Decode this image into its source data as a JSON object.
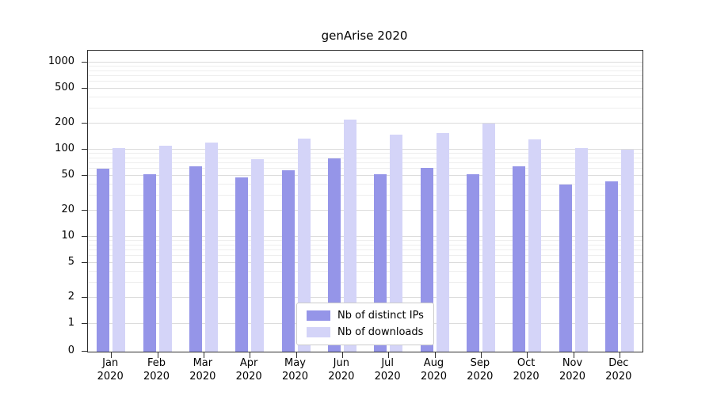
{
  "chart_data": {
    "type": "bar",
    "title": "genArise 2020",
    "categories": [
      "Jan 2020",
      "Feb 2020",
      "Mar 2020",
      "Apr 2020",
      "May 2020",
      "Jun 2020",
      "Jul 2020",
      "Aug 2020",
      "Sep 2020",
      "Oct 2020",
      "Nov 2020",
      "Dec 2020"
    ],
    "month_labels": [
      "Jan",
      "Feb",
      "Mar",
      "Apr",
      "May",
      "Jun",
      "Jul",
      "Aug",
      "Sep",
      "Oct",
      "Nov",
      "Dec"
    ],
    "year_label": "2020",
    "series": [
      {
        "name": "Nb of distinct IPs",
        "color": "#9595e8",
        "values": [
          60,
          52,
          65,
          48,
          58,
          80,
          52,
          62,
          52,
          65,
          40,
          43
        ]
      },
      {
        "name": "Nb of downloads",
        "color": "#d4d4f8",
        "values": [
          105,
          110,
          120,
          78,
          135,
          220,
          150,
          155,
          200,
          130,
          105,
          100
        ]
      }
    ],
    "yscale": "symlog",
    "yticks": [
      0,
      1,
      2,
      5,
      10,
      20,
      50,
      100,
      200,
      500,
      1000
    ],
    "ylim": [
      0,
      1500
    ],
    "xlabel": "",
    "ylabel": "",
    "grid": "horizontal major+minor",
    "legend_position": "lower center inside plot"
  }
}
